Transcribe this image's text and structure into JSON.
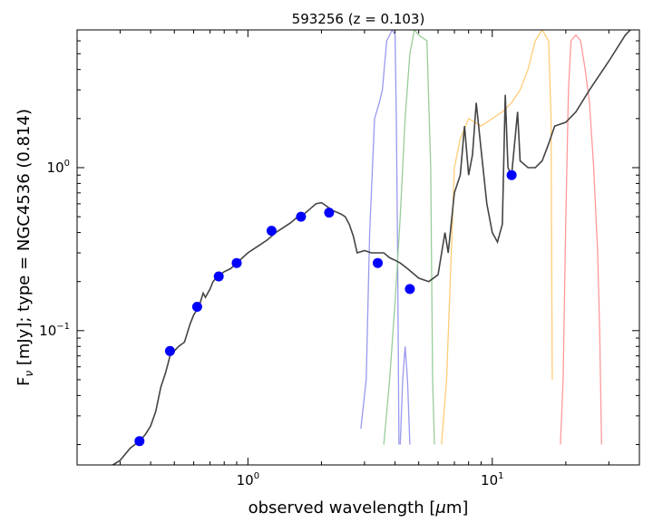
{
  "chart_data": {
    "type": "line",
    "title": "593256 (z = 0.103)",
    "xlabel_pre": "observed wavelength [",
    "xlabel_mu": "μ",
    "xlabel_post": "m]",
    "ylabel_pre": "F",
    "ylabel_sub": "ν",
    "ylabel_post": " [mJy];  type = NGC4536 (0.814)",
    "xscale": "log",
    "yscale": "log",
    "xlim": [
      0.2,
      40
    ],
    "ylim": [
      0.015,
      7
    ],
    "x_major_ticks": [
      {
        "value": 1,
        "base": "10",
        "exp": "0"
      },
      {
        "value": 10,
        "base": "10",
        "exp": "1"
      }
    ],
    "y_major_ticks": [
      {
        "value": 0.1,
        "base": "10",
        "exp": "−1"
      },
      {
        "value": 1,
        "base": "10",
        "exp": "0"
      }
    ],
    "sed_color": "#444444",
    "sed_template": [
      [
        0.25,
        0.012
      ],
      [
        0.28,
        0.015
      ],
      [
        0.3,
        0.016
      ],
      [
        0.33,
        0.019
      ],
      [
        0.36,
        0.021
      ],
      [
        0.38,
        0.023
      ],
      [
        0.4,
        0.026
      ],
      [
        0.42,
        0.032
      ],
      [
        0.44,
        0.045
      ],
      [
        0.46,
        0.055
      ],
      [
        0.47,
        0.062
      ],
      [
        0.48,
        0.07
      ],
      [
        0.486,
        0.08
      ],
      [
        0.49,
        0.072
      ],
      [
        0.5,
        0.075
      ],
      [
        0.52,
        0.08
      ],
      [
        0.55,
        0.085
      ],
      [
        0.58,
        0.11
      ],
      [
        0.6,
        0.125
      ],
      [
        0.63,
        0.14
      ],
      [
        0.656,
        0.17
      ],
      [
        0.67,
        0.16
      ],
      [
        0.7,
        0.18
      ],
      [
        0.72,
        0.2
      ],
      [
        0.74,
        0.21
      ],
      [
        0.8,
        0.23
      ],
      [
        0.85,
        0.24
      ],
      [
        0.9,
        0.26
      ],
      [
        1.0,
        0.3
      ],
      [
        1.1,
        0.33
      ],
      [
        1.2,
        0.36
      ],
      [
        1.3,
        0.4
      ],
      [
        1.4,
        0.43
      ],
      [
        1.5,
        0.46
      ],
      [
        1.6,
        0.5
      ],
      [
        1.7,
        0.52
      ],
      [
        1.8,
        0.56
      ],
      [
        1.9,
        0.6
      ],
      [
        2.0,
        0.61
      ],
      [
        2.1,
        0.58
      ],
      [
        2.2,
        0.55
      ],
      [
        2.4,
        0.52
      ],
      [
        2.5,
        0.5
      ],
      [
        2.6,
        0.45
      ],
      [
        2.7,
        0.38
      ],
      [
        2.8,
        0.3
      ],
      [
        3.0,
        0.31
      ],
      [
        3.2,
        0.3
      ],
      [
        3.4,
        0.3
      ],
      [
        3.6,
        0.3
      ],
      [
        3.8,
        0.28
      ],
      [
        4.0,
        0.27
      ],
      [
        4.2,
        0.26
      ],
      [
        4.5,
        0.24
      ],
      [
        5.0,
        0.21
      ],
      [
        5.5,
        0.2
      ],
      [
        6.0,
        0.22
      ],
      [
        6.4,
        0.4
      ],
      [
        6.6,
        0.3
      ],
      [
        7.0,
        0.7
      ],
      [
        7.4,
        0.9
      ],
      [
        7.7,
        1.8
      ],
      [
        8.0,
        0.9
      ],
      [
        8.3,
        1.2
      ],
      [
        8.6,
        2.5
      ],
      [
        9.0,
        1.3
      ],
      [
        9.5,
        0.6
      ],
      [
        10.0,
        0.4
      ],
      [
        10.5,
        0.35
      ],
      [
        11.0,
        0.45
      ],
      [
        11.3,
        2.8
      ],
      [
        11.6,
        1.0
      ],
      [
        12.0,
        0.9
      ],
      [
        12.7,
        2.2
      ],
      [
        13.0,
        1.1
      ],
      [
        14.0,
        1.0
      ],
      [
        15.0,
        1.0
      ],
      [
        16.0,
        1.1
      ],
      [
        17.0,
        1.4
      ],
      [
        18.0,
        1.8
      ],
      [
        20.0,
        1.9
      ],
      [
        22.0,
        2.2
      ],
      [
        25.0,
        3.0
      ],
      [
        30.0,
        4.5
      ],
      [
        35.0,
        6.5
      ],
      [
        40.0,
        8.0
      ]
    ],
    "photometry": {
      "color": "#0000ff",
      "points": [
        [
          0.36,
          0.021
        ],
        [
          0.48,
          0.075
        ],
        [
          0.62,
          0.14
        ],
        [
          0.76,
          0.215
        ],
        [
          0.9,
          0.26
        ],
        [
          1.25,
          0.41
        ],
        [
          1.65,
          0.5
        ],
        [
          2.15,
          0.53
        ],
        [
          3.4,
          0.26
        ],
        [
          4.6,
          0.18
        ],
        [
          12.0,
          0.9
        ]
      ]
    },
    "filter_curves": [
      {
        "color": "#9999ee",
        "points": [
          [
            2.9,
            0.025
          ],
          [
            3.05,
            0.05
          ],
          [
            3.15,
            0.4
          ],
          [
            3.3,
            2.0
          ],
          [
            3.45,
            2.5
          ],
          [
            3.55,
            3.0
          ],
          [
            3.7,
            6.0
          ],
          [
            3.9,
            7.0
          ],
          [
            4.0,
            6.5
          ],
          [
            4.05,
            2.0
          ],
          [
            4.1,
            0.3
          ],
          [
            4.15,
            0.02
          ]
        ]
      },
      {
        "color": "#9999ee",
        "points": [
          [
            4.2,
            0.02
          ],
          [
            4.3,
            0.05
          ],
          [
            4.4,
            0.08
          ],
          [
            4.5,
            0.05
          ],
          [
            4.6,
            0.02
          ]
        ]
      },
      {
        "color": "#99cc99",
        "points": [
          [
            3.6,
            0.02
          ],
          [
            3.8,
            0.05
          ],
          [
            4.0,
            0.15
          ],
          [
            4.2,
            0.5
          ],
          [
            4.4,
            2.0
          ],
          [
            4.6,
            5.0
          ],
          [
            4.8,
            7.0
          ],
          [
            5.0,
            6.5
          ],
          [
            5.4,
            6.0
          ],
          [
            5.6,
            1.0
          ],
          [
            5.7,
            0.05
          ],
          [
            5.8,
            0.02
          ]
        ]
      },
      {
        "color": "#ffcc77",
        "points": [
          [
            6.2,
            0.02
          ],
          [
            6.5,
            0.05
          ],
          [
            6.8,
            0.3
          ],
          [
            7.0,
            1.0
          ],
          [
            7.4,
            1.5
          ],
          [
            8.0,
            2.0
          ],
          [
            9.0,
            1.8
          ],
          [
            10.0,
            2.0
          ],
          [
            11.0,
            2.2
          ],
          [
            12.0,
            2.5
          ],
          [
            13.0,
            3.0
          ],
          [
            14.0,
            4.0
          ],
          [
            15.0,
            6.0
          ],
          [
            16.0,
            7.0
          ],
          [
            17.0,
            6.0
          ],
          [
            17.4,
            2.0
          ],
          [
            17.6,
            0.05
          ]
        ]
      },
      {
        "color": "#ff9999",
        "points": [
          [
            19.0,
            0.02
          ],
          [
            19.5,
            0.05
          ],
          [
            20.0,
            0.5
          ],
          [
            20.5,
            3.0
          ],
          [
            21.0,
            6.0
          ],
          [
            22.0,
            6.5
          ],
          [
            23.0,
            6.0
          ],
          [
            24.0,
            4.0
          ],
          [
            25.0,
            2.5
          ],
          [
            26.0,
            1.0
          ],
          [
            27.0,
            0.3
          ],
          [
            27.5,
            0.1
          ],
          [
            28.0,
            0.02
          ]
        ]
      }
    ]
  }
}
